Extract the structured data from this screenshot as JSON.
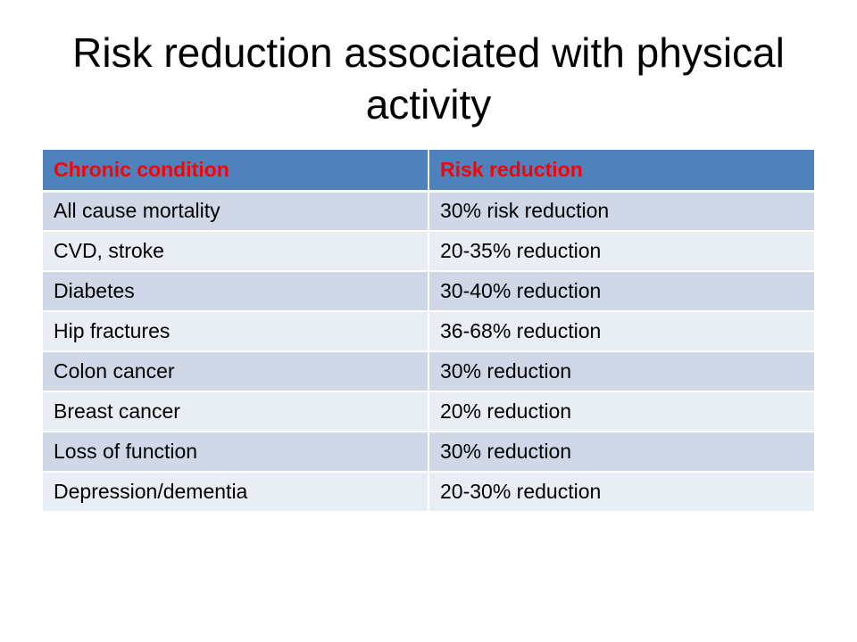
{
  "slide": {
    "title": "Risk reduction associated with physical activity"
  },
  "table": {
    "headers": {
      "condition": "Chronic condition",
      "reduction": "Risk reduction"
    },
    "rows": [
      {
        "condition": "All cause mortality",
        "reduction": "30% risk reduction"
      },
      {
        "condition": "CVD, stroke",
        "reduction": "20-35% reduction"
      },
      {
        "condition": "Diabetes",
        "reduction": "30-40% reduction"
      },
      {
        "condition": "Hip fractures",
        "reduction": "36-68% reduction"
      },
      {
        "condition": "Colon cancer",
        "reduction": "30% reduction"
      },
      {
        "condition": "Breast cancer",
        "reduction": "20% reduction"
      },
      {
        "condition": "Loss of function",
        "reduction": "30% reduction"
      },
      {
        "condition": "Depression/dementia",
        "reduction": "20-30% reduction"
      }
    ]
  },
  "colors": {
    "header_background": "#4f81bd",
    "header_text": "#ff0000",
    "row_band_dark": "#d0d8e8",
    "row_band_light": "#e9edf4"
  }
}
